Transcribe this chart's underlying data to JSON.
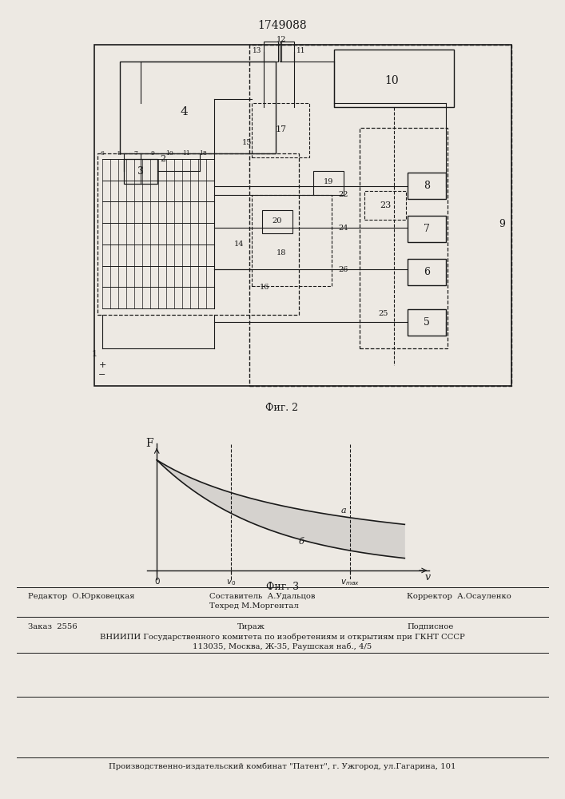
{
  "title": "1749088",
  "fig2_label": "Фиг. 2",
  "fig3_label": "Фиг. 3",
  "bg": "#ede9e3",
  "lc": "#1a1a1a",
  "footer_fs": 7.2,
  "v0": 0.3,
  "vmax": 0.78
}
